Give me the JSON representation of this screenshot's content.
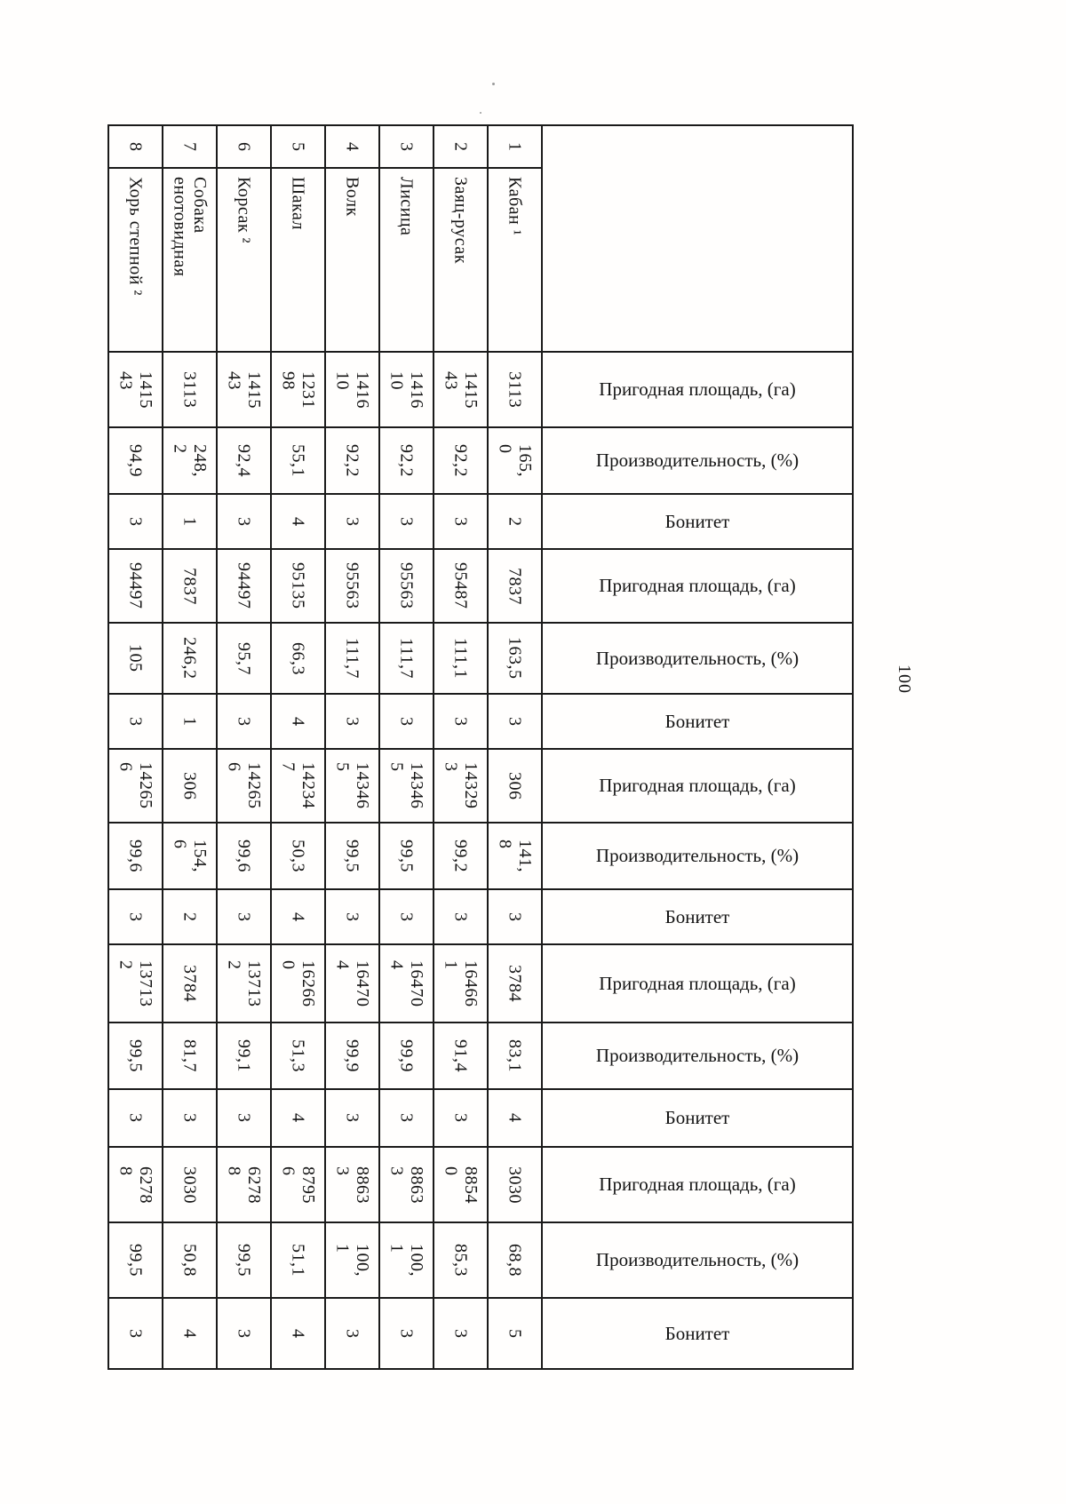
{
  "page": {
    "number": "100"
  },
  "table": {
    "columns": [
      {
        "num": "8",
        "name": "Хорь степной ²"
      },
      {
        "num": "7",
        "name": "Собака\nенотовидная"
      },
      {
        "num": "6",
        "name": "Корсак ²"
      },
      {
        "num": "5",
        "name": "Шакал"
      },
      {
        "num": "4",
        "name": "Волк"
      },
      {
        "num": "3",
        "name": "Лисица"
      },
      {
        "num": "2",
        "name": "Заяц-русак"
      },
      {
        "num": "1",
        "name": "Кабан ¹"
      }
    ],
    "labels": {
      "area": "Пригодная площадь, (га)",
      "productivity": "Производительность, (%)",
      "bonitet": "Бонитет"
    },
    "groups": [
      {
        "area": [
          "1415\n43",
          "3113",
          "1415\n43",
          "1231\n98",
          "1416\n10",
          "1416\n10",
          "1415\n43",
          "3113"
        ],
        "productivity": [
          "94,9",
          "248,\n2",
          "92,4",
          "55,1",
          "92,2",
          "92,2",
          "92,2",
          "165,\n0"
        ],
        "bonitet": [
          "3",
          "1",
          "3",
          "4",
          "3",
          "3",
          "3",
          "2"
        ]
      },
      {
        "area": [
          "94497",
          "7837",
          "94497",
          "95135",
          "95563",
          "95563",
          "95487",
          "7837"
        ],
        "productivity": [
          "105",
          "246,2",
          "95,7",
          "66,3",
          "111,7",
          "111,7",
          "111,1",
          "163,5"
        ],
        "bonitet": [
          "3",
          "1",
          "3",
          "4",
          "3",
          "3",
          "3",
          "3"
        ]
      },
      {
        "area": [
          "14265\n6",
          "306",
          "14265\n6",
          "14234\n7",
          "14346\n5",
          "14346\n5",
          "14329\n3",
          "306"
        ],
        "productivity": [
          "99,6",
          "154,\n6",
          "99,6",
          "50,3",
          "99,5",
          "99,5",
          "99,2",
          "141,\n8"
        ],
        "bonitet": [
          "3",
          "2",
          "3",
          "4",
          "3",
          "3",
          "3",
          "3"
        ]
      },
      {
        "area": [
          "13713\n2",
          "3784",
          "13713\n2",
          "16266\n0",
          "16470\n4",
          "16470\n4",
          "16466\n1",
          "3784"
        ],
        "productivity": [
          "99,5",
          "81,7",
          "99,1",
          "51,3",
          "99,9",
          "99,9",
          "91,4",
          "83,1"
        ],
        "bonitet": [
          "3",
          "3",
          "3",
          "4",
          "3",
          "3",
          "3",
          "4"
        ]
      },
      {
        "area": [
          "6278\n8",
          "3030",
          "6278\n8",
          "8795\n6",
          "8863\n3",
          "8863\n3",
          "8854\n0",
          "3030"
        ],
        "productivity": [
          "99,5",
          "50,8",
          "99,5",
          "51,1",
          "100,\n1",
          "100,\n1",
          "85,3",
          "68,8"
        ],
        "bonitet": [
          "3",
          "4",
          "3",
          "4",
          "3",
          "3",
          "3",
          "5"
        ]
      }
    ]
  }
}
